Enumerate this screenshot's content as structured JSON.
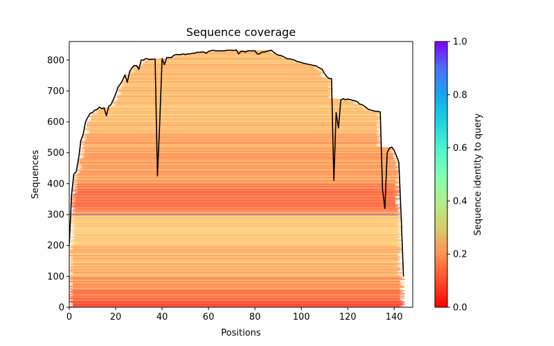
{
  "chart_data": {
    "type": "heatmap",
    "title": "Sequence coverage",
    "xlabel": "Positions",
    "ylabel": "Sequences",
    "xlim": [
      0,
      148
    ],
    "ylim": [
      0,
      860
    ],
    "xticks": [
      0,
      20,
      40,
      60,
      80,
      100,
      120,
      140
    ],
    "yticks": [
      0,
      100,
      200,
      300,
      400,
      500,
      600,
      700,
      800
    ],
    "grid": false,
    "colorbar": {
      "label": "Sequence identity to query",
      "range": [
        0.0,
        1.0
      ],
      "ticks": [
        "0.0",
        "0.2",
        "0.4",
        "0.6",
        "0.8",
        "1.0"
      ],
      "colormap": "rainbow_r"
    },
    "query_row": {
      "sequence_index": 299,
      "identity": 1.0
    },
    "top_row": {
      "sequence_index": 858,
      "identity": 0.85
    },
    "coverage_line": {
      "name": "coverage",
      "color": "#000000",
      "x": [
        0,
        1,
        2,
        3,
        4,
        5,
        6,
        7,
        8,
        9,
        10,
        11,
        12,
        13,
        14,
        15,
        16,
        17,
        18,
        19,
        20,
        21,
        22,
        23,
        24,
        25,
        26,
        27,
        28,
        29,
        30,
        31,
        32,
        33,
        34,
        35,
        36,
        37,
        38,
        39,
        40,
        41,
        42,
        43,
        44,
        45,
        46,
        47,
        48,
        49,
        50,
        51,
        52,
        53,
        54,
        55,
        56,
        57,
        58,
        59,
        60,
        61,
        62,
        63,
        64,
        65,
        66,
        67,
        68,
        69,
        70,
        71,
        72,
        73,
        74,
        75,
        76,
        77,
        78,
        79,
        80,
        81,
        82,
        83,
        84,
        85,
        86,
        87,
        88,
        89,
        90,
        91,
        92,
        93,
        94,
        95,
        96,
        97,
        98,
        99,
        100,
        101,
        102,
        103,
        104,
        105,
        106,
        107,
        108,
        109,
        110,
        111,
        112,
        113,
        114,
        115,
        116,
        117,
        118,
        119,
        120,
        121,
        122,
        123,
        124,
        125,
        126,
        127,
        128,
        129,
        130,
        131,
        132,
        133,
        134,
        135,
        136,
        137,
        138,
        139,
        140,
        141,
        142,
        143,
        144,
        145
      ],
      "y": [
        200,
        365,
        432,
        438,
        480,
        540,
        560,
        600,
        615,
        628,
        630,
        638,
        640,
        648,
        642,
        645,
        620,
        650,
        656,
        672,
        690,
        712,
        722,
        735,
        752,
        728,
        762,
        775,
        782,
        782,
        770,
        800,
        800,
        805,
        803,
        802,
        803,
        803,
        425,
        600,
        805,
        785,
        808,
        808,
        808,
        815,
        818,
        818,
        818,
        820,
        818,
        820,
        820,
        822,
        822,
        825,
        825,
        826,
        826,
        822,
        828,
        830,
        832,
        830,
        830,
        830,
        830,
        830,
        832,
        832,
        832,
        831,
        833,
        820,
        828,
        828,
        826,
        830,
        830,
        830,
        830,
        820,
        820,
        826,
        826,
        828,
        830,
        832,
        826,
        820,
        816,
        815,
        812,
        808,
        804,
        804,
        802,
        800,
        796,
        794,
        792,
        790,
        788,
        786,
        785,
        783,
        782,
        778,
        774,
        770,
        756,
        746,
        740,
        740,
        410,
        630,
        580,
        670,
        675,
        672,
        674,
        672,
        670,
        668,
        666,
        658,
        656,
        652,
        646,
        640,
        638,
        636,
        634,
        634,
        632,
        380,
        320,
        500,
        515,
        518,
        508,
        490,
        470,
        300,
        100
      ]
    },
    "identity_bands": [
      {
        "rows": [
          0,
          20
        ],
        "identity_approx": 0.08
      },
      {
        "rows": [
          20,
          60
        ],
        "identity_approx": 0.13
      },
      {
        "rows": [
          60,
          100
        ],
        "identity_approx": 0.18
      },
      {
        "rows": [
          100,
          200
        ],
        "identity_approx": 0.24
      },
      {
        "rows": [
          200,
          299
        ],
        "identity_approx": 0.28
      },
      {
        "rows": [
          299,
          300
        ],
        "identity_approx": 1.0
      },
      {
        "rows": [
          300,
          400
        ],
        "identity_approx": 0.13
      },
      {
        "rows": [
          400,
          560
        ],
        "identity_approx": 0.2
      },
      {
        "rows": [
          560,
          858
        ],
        "identity_approx": 0.25
      },
      {
        "rows": [
          858,
          860
        ],
        "identity_approx": 0.85
      }
    ]
  }
}
